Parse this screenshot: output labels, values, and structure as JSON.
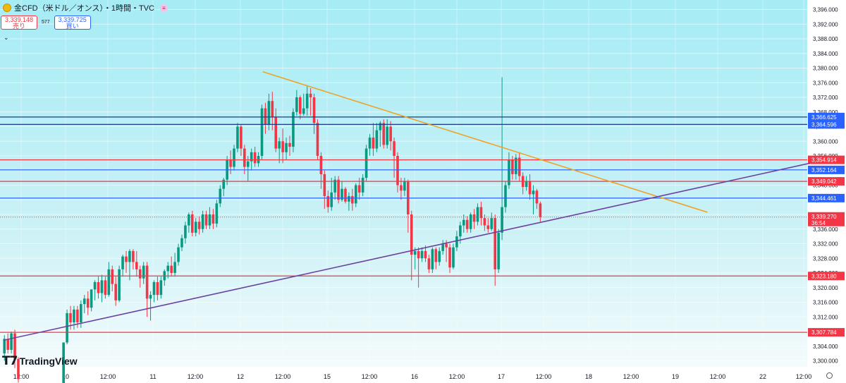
{
  "header": {
    "symbol_icon": "gold-coin-icon",
    "title": "金CFD（米ドル／オンス）・1時間・TVC",
    "menu_icon": "lines-menu-icon"
  },
  "quotes": {
    "sell_price": "3,339.148",
    "sell_label": "売り",
    "spread": "577",
    "buy_price": "3,339.725",
    "buy_label": "買い"
  },
  "logo": {
    "mark": "𝗧𝟳",
    "text": "TradingView"
  },
  "chart_data": {
    "type": "candlestick",
    "title": "金CFD（米ドル／オンス）・1時間・TVC",
    "ylim": [
      3297.5,
      3398.5
    ],
    "y_ticks": [
      "3,300.000",
      "3,304.000",
      "3,308.000",
      "3,312.000",
      "3,316.000",
      "3,320.000",
      "3,324.000",
      "3,328.000",
      "3,332.000",
      "3,336.000",
      "3,340.000",
      "3,344.000",
      "3,348.000",
      "3,352.000",
      "3,356.000",
      "3,360.000",
      "3,364.000",
      "3,368.000",
      "3,372.000",
      "3,376.000",
      "3,380.000",
      "3,384.000",
      "3,388.000",
      "3,392.000",
      "3,396.000"
    ],
    "x_ticks": [
      "12:00",
      "10",
      "12:00",
      "11",
      "12:00",
      "12",
      "12:00",
      "15",
      "12:00",
      "16",
      "12:00",
      "17",
      "12:00",
      "18",
      "12:00",
      "19",
      "12:00",
      "22",
      "12:00"
    ],
    "horizontal_levels": [
      {
        "value": 3366.625,
        "label": "3,366.625",
        "color": "#1e3a8a",
        "label_bg": "#2962ff"
      },
      {
        "value": 3364.596,
        "label": "3,364.596",
        "color": "#1e3a8a",
        "label_bg": "#2962ff"
      },
      {
        "value": 3354.914,
        "label": "3,354.914",
        "color": "#f23645",
        "label_bg": "#f23645"
      },
      {
        "value": 3352.164,
        "label": "3,352.164",
        "color": "#2962ff",
        "label_bg": "#2962ff"
      },
      {
        "value": 3349.042,
        "label": "3,349.042",
        "color": "#f23645",
        "label_bg": "#f23645"
      },
      {
        "value": 3344.461,
        "label": "3,344.461",
        "color": "#2962ff",
        "label_bg": "#2962ff"
      },
      {
        "value": 3323.18,
        "label": "3,323.180",
        "color": "#f23645",
        "label_bg": "#f23645"
      },
      {
        "value": 3307.784,
        "label": "3,307.784",
        "color": "#f23645",
        "label_bg": "#f23645"
      }
    ],
    "current_price": {
      "value": 3339.27,
      "label": "3,339.270",
      "countdown": "36:54",
      "color": "#f23645"
    },
    "trendlines": [
      {
        "name": "",
        "color": "#f0a01c",
        "from": [
          2.98,
          3379.0
        ],
        "to": [
          8.09,
          3340.6
        ]
      },
      {
        "name": "",
        "color": "#6a3fa0",
        "from": [
          0.0,
          3305.6
        ],
        "to": [
          9.27,
          3354.0
        ]
      }
    ],
    "candles": [
      [
        0.01,
        3302.0,
        3306.0,
        3300.0,
        3307.0
      ],
      [
        0.05,
        3306.0,
        3303.0,
        3302.0,
        3307.5
      ],
      [
        0.09,
        3303.0,
        3307.5,
        3302.0,
        3308.0
      ],
      [
        0.13,
        3307.5,
        3300.5,
        3298.0,
        3308.5
      ],
      [
        0.17,
        3300.5,
        3295.0,
        3294.0,
        3301.0
      ],
      [
        0.69,
        3292.0,
        3305.0,
        3292.0,
        3305.0
      ],
      [
        0.73,
        3305.0,
        3313.0,
        3304.5,
        3314.0
      ],
      [
        0.77,
        3313.0,
        3310.5,
        3308.5,
        3315.0
      ],
      [
        0.81,
        3310.5,
        3314.0,
        3308.5,
        3315.0
      ],
      [
        0.85,
        3314.0,
        3310.5,
        3309.0,
        3315.0
      ],
      [
        0.89,
        3310.5,
        3315.5,
        3309.0,
        3316.5
      ],
      [
        0.93,
        3315.5,
        3317.0,
        3313.0,
        3318.0
      ],
      [
        0.97,
        3317.0,
        3314.5,
        3312.5,
        3319.0
      ],
      [
        1.01,
        3314.5,
        3319.5,
        3313.5,
        3319.5
      ],
      [
        1.05,
        3319.5,
        3321.5,
        3316.5,
        3322.0
      ],
      [
        1.09,
        3321.5,
        3318.5,
        3317.0,
        3323.0
      ],
      [
        1.13,
        3318.5,
        3322.0,
        3316.0,
        3323.5
      ],
      [
        1.17,
        3322.0,
        3318.0,
        3317.0,
        3323.0
      ],
      [
        1.21,
        3318.0,
        3325.0,
        3317.5,
        3327.0
      ],
      [
        1.25,
        3325.0,
        3321.0,
        3319.0,
        3326.0
      ],
      [
        1.29,
        3321.0,
        3316.5,
        3315.0,
        3323.0
      ],
      [
        1.33,
        3316.5,
        3325.0,
        3316.0,
        3326.0
      ],
      [
        1.37,
        3325.0,
        3328.5,
        3323.0,
        3329.0
      ],
      [
        1.41,
        3328.5,
        3327.0,
        3324.0,
        3330.0
      ],
      [
        1.45,
        3327.0,
        3330.0,
        3322.0,
        3330.5
      ],
      [
        1.49,
        3330.0,
        3327.0,
        3325.0,
        3330.5
      ],
      [
        1.53,
        3327.0,
        3325.0,
        3323.0,
        3330.0
      ],
      [
        1.57,
        3325.0,
        3322.5,
        3320.0,
        3326.0
      ],
      [
        1.61,
        3322.5,
        3326.0,
        3321.0,
        3327.0
      ],
      [
        1.65,
        3326.0,
        3317.0,
        3312.0,
        3327.0
      ],
      [
        1.69,
        3317.0,
        3318.0,
        3311.0,
        3319.0
      ],
      [
        1.73,
        3318.0,
        3321.5,
        3316.0,
        3322.0
      ],
      [
        1.77,
        3321.5,
        3318.0,
        3316.5,
        3323.0
      ],
      [
        1.81,
        3318.0,
        3322.0,
        3317.0,
        3323.0
      ],
      [
        1.85,
        3322.0,
        3324.5,
        3320.5,
        3325.0
      ],
      [
        1.89,
        3324.5,
        3326.0,
        3322.5,
        3327.0
      ],
      [
        1.93,
        3326.0,
        3324.0,
        3323.0,
        3328.5
      ],
      [
        1.97,
        3324.0,
        3327.0,
        3323.0,
        3329.5
      ],
      [
        2.01,
        3327.0,
        3331.0,
        3326.0,
        3332.0
      ],
      [
        2.05,
        3331.0,
        3333.5,
        3330.0,
        3334.5
      ],
      [
        2.09,
        3333.5,
        3337.0,
        3332.0,
        3338.0
      ],
      [
        2.13,
        3337.0,
        3340.0,
        3335.0,
        3340.5
      ],
      [
        2.17,
        3340.0,
        3335.0,
        3334.0,
        3341.0
      ],
      [
        2.21,
        3335.0,
        3338.0,
        3334.0,
        3339.0
      ],
      [
        2.25,
        3338.0,
        3336.0,
        3334.5,
        3339.5
      ],
      [
        2.29,
        3336.0,
        3340.0,
        3335.0,
        3341.0
      ],
      [
        2.33,
        3340.0,
        3337.0,
        3336.0,
        3341.0
      ],
      [
        2.37,
        3337.0,
        3340.0,
        3336.0,
        3342.0
      ],
      [
        2.41,
        3340.0,
        3337.5,
        3336.0,
        3341.5
      ],
      [
        2.45,
        3337.5,
        3343.0,
        3336.5,
        3344.0
      ],
      [
        2.49,
        3343.0,
        3347.0,
        3342.0,
        3348.0
      ],
      [
        2.53,
        3347.0,
        3349.5,
        3345.0,
        3350.0
      ],
      [
        2.57,
        3349.5,
        3355.0,
        3348.0,
        3356.0
      ],
      [
        2.61,
        3355.0,
        3353.0,
        3351.0,
        3357.5
      ],
      [
        2.65,
        3353.0,
        3358.0,
        3352.0,
        3359.0
      ],
      [
        2.69,
        3358.0,
        3364.0,
        3357.0,
        3365.0
      ],
      [
        2.73,
        3364.0,
        3358.0,
        3356.0,
        3364.5
      ],
      [
        2.77,
        3358.0,
        3353.0,
        3351.0,
        3359.0
      ],
      [
        2.81,
        3353.0,
        3354.5,
        3349.0,
        3356.0
      ],
      [
        2.85,
        3354.5,
        3357.0,
        3352.0,
        3358.0
      ],
      [
        2.89,
        3357.0,
        3354.0,
        3353.0,
        3358.5
      ],
      [
        2.93,
        3354.0,
        3356.0,
        3353.0,
        3357.0
      ],
      [
        2.97,
        3356.0,
        3369.0,
        3355.0,
        3370.0
      ],
      [
        3.01,
        3369.0,
        3364.5,
        3362.0,
        3370.5
      ],
      [
        3.05,
        3364.5,
        3371.0,
        3363.0,
        3373.0
      ],
      [
        3.09,
        3371.0,
        3366.5,
        3363.0,
        3373.5
      ],
      [
        3.13,
        3366.5,
        3358.0,
        3357.0,
        3369.0
      ],
      [
        3.17,
        3358.0,
        3360.0,
        3354.0,
        3361.0
      ],
      [
        3.21,
        3360.0,
        3357.0,
        3354.0,
        3363.5
      ],
      [
        3.25,
        3357.0,
        3359.5,
        3355.0,
        3361.0
      ],
      [
        3.29,
        3359.5,
        3358.5,
        3356.0,
        3361.5
      ],
      [
        3.33,
        3358.5,
        3368.0,
        3357.0,
        3369.0
      ],
      [
        3.37,
        3368.0,
        3372.0,
        3367.0,
        3374.0
      ],
      [
        3.41,
        3372.0,
        3367.5,
        3366.0,
        3372.5
      ],
      [
        3.45,
        3367.5,
        3369.0,
        3367.0,
        3373.0
      ],
      [
        3.49,
        3369.0,
        3373.0,
        3367.0,
        3375.0
      ],
      [
        3.53,
        3373.0,
        3372.0,
        3367.0,
        3374.5
      ],
      [
        3.57,
        3372.0,
        3365.0,
        3362.0,
        3373.0
      ],
      [
        3.61,
        3365.0,
        3356.0,
        3355.0,
        3366.0
      ],
      [
        3.65,
        3356.0,
        3351.0,
        3347.0,
        3357.0
      ],
      [
        3.69,
        3351.0,
        3345.0,
        3341.5,
        3352.0
      ],
      [
        3.73,
        3345.0,
        3342.0,
        3340.5,
        3346.5
      ],
      [
        3.77,
        3342.0,
        3346.0,
        3341.0,
        3350.0
      ],
      [
        3.81,
        3346.0,
        3349.5,
        3344.0,
        3350.5
      ],
      [
        3.85,
        3349.5,
        3344.0,
        3343.0,
        3350.5
      ],
      [
        3.89,
        3344.0,
        3347.0,
        3343.5,
        3349.0
      ],
      [
        3.93,
        3347.0,
        3343.5,
        3343.0,
        3347.5
      ],
      [
        3.97,
        3343.5,
        3345.0,
        3341.0,
        3346.0
      ],
      [
        4.01,
        3345.0,
        3343.0,
        3341.0,
        3347.0
      ],
      [
        4.05,
        3343.0,
        3348.0,
        3342.0,
        3348.5
      ],
      [
        4.09,
        3348.0,
        3346.0,
        3344.0,
        3350.0
      ],
      [
        4.13,
        3346.0,
        3350.0,
        3345.0,
        3351.0
      ],
      [
        4.17,
        3350.0,
        3358.0,
        3349.0,
        3359.0
      ],
      [
        4.21,
        3358.0,
        3361.0,
        3356.0,
        3362.0
      ],
      [
        4.25,
        3361.0,
        3358.0,
        3356.0,
        3365.0
      ],
      [
        4.29,
        3358.0,
        3363.0,
        3357.0,
        3365.0
      ],
      [
        4.33,
        3363.0,
        3365.0,
        3358.5,
        3365.5
      ],
      [
        4.37,
        3365.0,
        3359.0,
        3358.0,
        3366.0
      ],
      [
        4.41,
        3359.0,
        3364.0,
        3358.0,
        3366.0
      ],
      [
        4.45,
        3364.0,
        3360.0,
        3357.5,
        3365.5
      ],
      [
        4.49,
        3360.0,
        3356.0,
        3350.0,
        3361.0
      ],
      [
        4.53,
        3356.0,
        3348.0,
        3346.0,
        3357.0
      ],
      [
        4.57,
        3348.0,
        3346.5,
        3344.0,
        3350.0
      ],
      [
        4.61,
        3346.5,
        3349.0,
        3345.0,
        3350.0
      ],
      [
        4.65,
        3349.0,
        3340.0,
        3335.0,
        3349.5
      ],
      [
        4.69,
        3340.0,
        3329.0,
        3322.0,
        3341.0
      ],
      [
        4.73,
        3329.0,
        3330.0,
        3325.0,
        3331.0
      ],
      [
        4.77,
        3330.0,
        3328.0,
        3320.0,
        3331.0
      ],
      [
        4.81,
        3328.0,
        3330.0,
        3327.0,
        3331.0
      ],
      [
        4.85,
        3330.0,
        3328.0,
        3327.0,
        3331.5
      ],
      [
        4.89,
        3328.0,
        3325.0,
        3324.0,
        3329.0
      ],
      [
        4.93,
        3325.0,
        3330.5,
        3324.0,
        3331.0
      ],
      [
        4.97,
        3330.5,
        3327.0,
        3325.0,
        3331.0
      ],
      [
        5.01,
        3327.0,
        3330.0,
        3326.0,
        3331.0
      ],
      [
        5.05,
        3330.0,
        3332.0,
        3329.0,
        3333.0
      ],
      [
        5.09,
        3332.0,
        3331.0,
        3327.0,
        3333.0
      ],
      [
        5.13,
        3331.0,
        3325.5,
        3324.0,
        3332.0
      ],
      [
        5.17,
        3325.5,
        3331.0,
        3325.0,
        3332.0
      ],
      [
        5.21,
        3331.0,
        3334.0,
        3330.0,
        3335.5
      ],
      [
        5.25,
        3334.0,
        3337.0,
        3332.0,
        3338.0
      ],
      [
        5.29,
        3337.0,
        3338.5,
        3335.0,
        3340.0
      ],
      [
        5.33,
        3338.5,
        3336.0,
        3335.0,
        3339.5
      ],
      [
        5.37,
        3336.0,
        3340.0,
        3335.0,
        3340.5
      ],
      [
        5.41,
        3340.0,
        3338.0,
        3336.0,
        3341.5
      ],
      [
        5.45,
        3338.0,
        3342.0,
        3337.0,
        3343.0
      ],
      [
        5.49,
        3342.0,
        3339.0,
        3337.0,
        3343.5
      ],
      [
        5.53,
        3339.0,
        3337.0,
        3335.5,
        3340.0
      ],
      [
        5.57,
        3337.0,
        3336.0,
        3335.0,
        3339.0
      ],
      [
        5.61,
        3336.0,
        3339.0,
        3335.5,
        3340.5
      ],
      [
        5.65,
        3339.0,
        3325.0,
        3320.5,
        3340.0
      ],
      [
        5.69,
        3325.0,
        3335.0,
        3324.0,
        3336.0
      ],
      [
        5.73,
        3335.0,
        3342.0,
        3333.0,
        3377.5
      ],
      [
        5.77,
        3342.0,
        3348.0,
        3340.5,
        3349.0
      ],
      [
        5.81,
        3348.0,
        3355.0,
        3347.0,
        3357.0
      ],
      [
        5.85,
        3355.0,
        3351.0,
        3349.5,
        3356.0
      ],
      [
        5.89,
        3351.0,
        3355.5,
        3349.5,
        3356.5
      ],
      [
        5.93,
        3355.5,
        3350.5,
        3349.0,
        3357.0
      ],
      [
        5.97,
        3350.5,
        3347.5,
        3345.5,
        3351.5
      ],
      [
        6.01,
        3347.5,
        3349.0,
        3346.5,
        3350.5
      ],
      [
        6.05,
        3349.0,
        3345.5,
        3344.0,
        3351.0
      ],
      [
        6.09,
        3345.5,
        3346.5,
        3340.0,
        3348.0
      ],
      [
        6.13,
        3346.5,
        3343.0,
        3341.5,
        3347.0
      ],
      [
        6.17,
        3343.0,
        3339.3,
        3338.0,
        3343.5
      ]
    ],
    "x_axis_note": "x = trading day index (0 = day of 10th start), each hourly candle = 1/24",
    "up_color": "#089981",
    "down_color": "#f23645",
    "grid": true
  }
}
